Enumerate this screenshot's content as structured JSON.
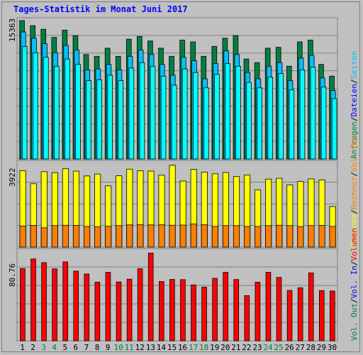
{
  "title": "Tages-Statistik im Monat Juni 2017",
  "colors": {
    "anfragen": "#008040",
    "dateien": "#00c0ff",
    "seiten": "#00ffff",
    "besuche": "#ffff00",
    "rechner": "#ff8000",
    "volumen": "#ff0000",
    "weekend_tick": "#008040",
    "weekday_tick": "#000000",
    "title": "#0000ff"
  },
  "chart_data": [
    {
      "type": "bar",
      "panel": "top",
      "y_tick_label": "15363",
      "ylim": [
        0,
        15363
      ],
      "categories": [
        "1",
        "2",
        "3",
        "4",
        "5",
        "6",
        "7",
        "8",
        "9",
        "10",
        "11",
        "12",
        "13",
        "14",
        "15",
        "16",
        "17",
        "18",
        "19",
        "20",
        "21",
        "22",
        "23",
        "24",
        "25",
        "26",
        "27",
        "28",
        "29",
        "30"
      ],
      "weekend": [
        false,
        false,
        true,
        true,
        false,
        false,
        false,
        false,
        false,
        true,
        true,
        false,
        false,
        false,
        false,
        false,
        true,
        true,
        false,
        false,
        false,
        false,
        false,
        true,
        true,
        false,
        false,
        false,
        false,
        false
      ],
      "series": [
        {
          "name": "Anfragen",
          "values": [
            15363,
            14800,
            14400,
            13500,
            14300,
            13700,
            11600,
            11400,
            12300,
            11400,
            13300,
            13600,
            13100,
            12300,
            11400,
            13200,
            13000,
            11400,
            12500,
            13400,
            13700,
            11100,
            10700,
            12300,
            12400,
            10300,
            13000,
            13200,
            10500,
            9200
          ]
        },
        {
          "name": "Dateien",
          "values": [
            14100,
            13400,
            12800,
            11800,
            12600,
            12100,
            9900,
            10000,
            10500,
            9900,
            11400,
            12100,
            11600,
            10500,
            9300,
            11300,
            10900,
            8900,
            10600,
            12000,
            11600,
            9600,
            8900,
            10300,
            10700,
            8700,
            11200,
            11500,
            9000,
            7600
          ]
        },
        {
          "name": "Seiten",
          "values": [
            12500,
            11800,
            11300,
            10300,
            11100,
            10500,
            8700,
            8800,
            9300,
            8700,
            10100,
            10700,
            10300,
            9200,
            8200,
            10000,
            9600,
            7900,
            9400,
            10600,
            10300,
            8500,
            7900,
            9100,
            9500,
            7700,
            9900,
            10200,
            8000,
            6700
          ]
        }
      ],
      "legend": [
        "Anfragen",
        "Dateien",
        "Seiten"
      ]
    },
    {
      "type": "bar",
      "panel": "middle",
      "y_tick_label": "3922",
      "ylim": [
        0,
        4300
      ],
      "categories": [
        "1",
        "2",
        "3",
        "4",
        "5",
        "6",
        "7",
        "8",
        "9",
        "10",
        "11",
        "12",
        "13",
        "14",
        "15",
        "16",
        "17",
        "18",
        "19",
        "20",
        "21",
        "22",
        "23",
        "24",
        "25",
        "26",
        "27",
        "28",
        "29",
        "30"
      ],
      "series": [
        {
          "name": "Besuche",
          "values": [
            3922,
            3250,
            3870,
            3820,
            4020,
            3900,
            3650,
            3750,
            3140,
            3660,
            4000,
            3920,
            3900,
            3690,
            4200,
            3390,
            3990,
            3850,
            3760,
            3830,
            3620,
            3700,
            2940,
            3490,
            3530,
            3190,
            3370,
            3500,
            3450,
            2080
          ]
        },
        {
          "name": "Rechner",
          "values": [
            1080,
            1110,
            990,
            1100,
            1120,
            1110,
            1060,
            1040,
            1070,
            1100,
            1140,
            1150,
            1140,
            1150,
            1120,
            1130,
            1190,
            1150,
            1060,
            1100,
            1100,
            1060,
            1060,
            1100,
            1120,
            1100,
            1050,
            1100,
            1110,
            1060
          ]
        }
      ],
      "legend": [
        "Besuche",
        "Rechner"
      ]
    },
    {
      "type": "bar",
      "panel": "bottom",
      "y_tick_label": "80.76",
      "ylim": [
        0,
        100
      ],
      "categories": [
        "1",
        "2",
        "3",
        "4",
        "5",
        "6",
        "7",
        "8",
        "9",
        "10",
        "11",
        "12",
        "13",
        "14",
        "15",
        "16",
        "17",
        "18",
        "19",
        "20",
        "21",
        "22",
        "23",
        "24",
        "25",
        "26",
        "27",
        "28",
        "29",
        "30"
      ],
      "series": [
        {
          "name": "Volumen",
          "values": [
            80.76,
            91.5,
            87.4,
            80.4,
            88.2,
            77.9,
            74.7,
            65.6,
            76.6,
            65.8,
            68.9,
            80.6,
            98.1,
            66.3,
            68.6,
            68.4,
            62.5,
            60.1,
            69.8,
            76.5,
            68.5,
            50.5,
            65.5,
            76.6,
            70.9,
            56.3,
            59.3,
            75.9,
            56.1,
            55.7
          ]
        }
      ],
      "legend": [
        "Volumen",
        "Vol. In",
        "Vol. Out"
      ]
    }
  ],
  "right_legend": {
    "top": [
      {
        "text": "Anfragen",
        "color": "#008040"
      },
      {
        "text": "/",
        "color": "#000000"
      },
      {
        "text": "Dateien",
        "color": "#0000ff"
      },
      {
        "text": "/",
        "color": "#000000"
      },
      {
        "text": "Seiten",
        "color": "#00c0ff"
      }
    ],
    "middle": [
      {
        "text": "Besuche",
        "color": "#ffff00"
      },
      {
        "text": "/",
        "color": "#000000"
      },
      {
        "text": "Rechner",
        "color": "#ff8000"
      },
      {
        "text": "/",
        "color": "#000000"
      },
      {
        "text": "Vol. Out",
        "color": "#ff8000"
      }
    ],
    "bottom": [
      {
        "text": "Vol. Out",
        "color": "#008040"
      },
      {
        "text": "/",
        "color": "#000000"
      },
      {
        "text": "Vol. In",
        "color": "#0000ff"
      },
      {
        "text": "/",
        "color": "#000000"
      },
      {
        "text": "Volumen",
        "color": "#ff0000"
      }
    ]
  },
  "grid": true
}
